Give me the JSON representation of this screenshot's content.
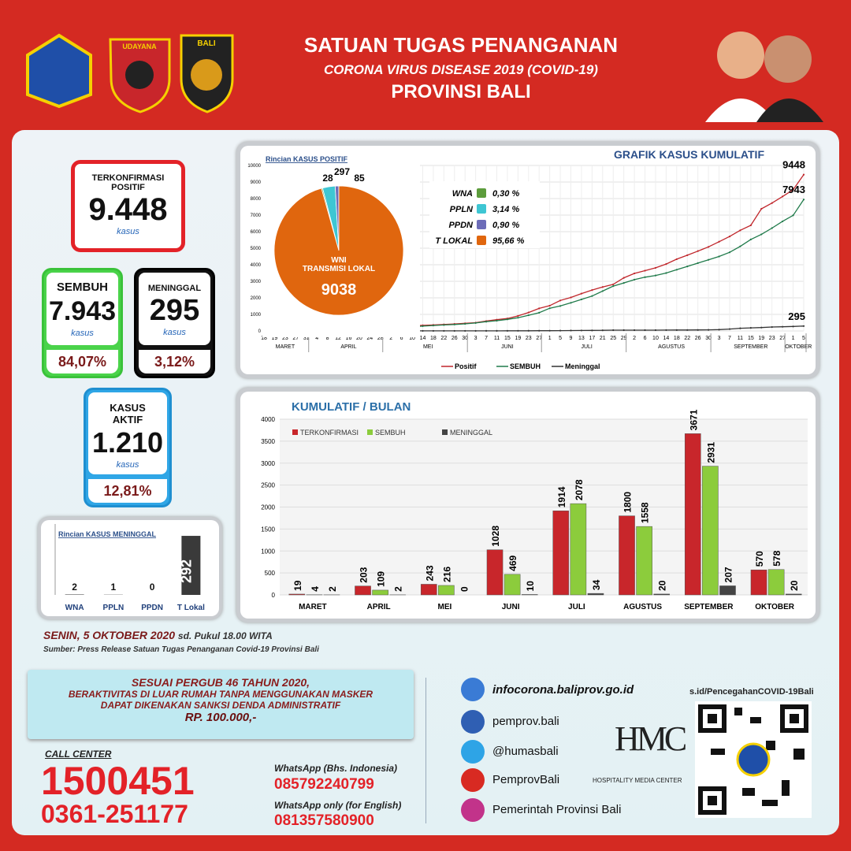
{
  "header": {
    "title": "SATUAN TUGAS PENANGANAN",
    "subtitle": "CORONA VIRUS DISEASE 2019 (COVID-19)",
    "province": "PROVINSI BALI",
    "logo_labels": [
      "UDAYANA",
      "BALI"
    ]
  },
  "stats": {
    "confirmed": {
      "label": "TERKONFIRMASI POSITIF",
      "value": "9.448",
      "unit": "kasus"
    },
    "recovered": {
      "label": "SEMBUH",
      "value": "7.943",
      "unit": "kasus",
      "percent": "84,07%"
    },
    "deaths": {
      "label": "MENINGGAL",
      "value": "295",
      "unit": "kasus",
      "percent": "3,12%"
    },
    "active": {
      "label": "KASUS AKTIF",
      "value": "1.210",
      "unit": "kasus",
      "percent": "12,81%"
    }
  },
  "chart_data": [
    {
      "type": "line",
      "title": "GRAFIK KASUS KUMULATIF",
      "categories": [
        "18",
        "19",
        "23",
        "27",
        "31",
        "4",
        "8",
        "12",
        "16",
        "20",
        "24",
        "28",
        "2",
        "6",
        "10",
        "14",
        "18",
        "22",
        "26",
        "30",
        "3",
        "7",
        "11",
        "15",
        "19",
        "23",
        "27",
        "1",
        "5",
        "9",
        "13",
        "17",
        "21",
        "25",
        "29",
        "2",
        "6",
        "10",
        "14",
        "18",
        "22",
        "26",
        "30",
        "3",
        "7",
        "11",
        "15",
        "19",
        "23",
        "27",
        "1",
        "5"
      ],
      "months": [
        "MARET",
        "APRIL",
        "MEI",
        "JUNI",
        "JULI",
        "AGUSTUS",
        "SEPTEMBER",
        "OKTOBER"
      ],
      "ylim": [
        0,
        10000
      ],
      "yticks": [
        0,
        1000,
        2000,
        3000,
        4000,
        5000,
        6000,
        7000,
        8000,
        9000,
        10000
      ],
      "series": [
        {
          "name": "Positif",
          "color": "#c0262b",
          "values": [
            1,
            1,
            9,
            9,
            19,
            35,
            63,
            98,
            133,
            150,
            186,
            218,
            235,
            270,
            312,
            339,
            362,
            392,
            425,
            460,
            501,
            598,
            682,
            751,
            911,
            1116,
            1362,
            1527,
            1842,
            2024,
            2257,
            2470,
            2656,
            2813,
            3209,
            3478,
            3644,
            3812,
            4041,
            4337,
            4576,
            4826,
            5079,
            5392,
            5710,
            6079,
            6383,
            7380,
            7728,
            8126,
            8533,
            9448
          ]
        },
        {
          "name": "SEMBUH",
          "color": "#1f7a4a",
          "values": [
            0,
            0,
            0,
            0,
            4,
            10,
            18,
            32,
            50,
            70,
            100,
            113,
            150,
            200,
            250,
            290,
            330,
            360,
            390,
            430,
            480,
            560,
            620,
            700,
            800,
            950,
            1100,
            1371,
            1508,
            1700,
            1907,
            2110,
            2408,
            2711,
            2900,
            3100,
            3250,
            3350,
            3500,
            3700,
            3900,
            4100,
            4300,
            4500,
            4752,
            5111,
            5529,
            5837,
            6213,
            6623,
            6987,
            7943
          ]
        },
        {
          "name": "Meninggal",
          "color": "#333333",
          "values": [
            0,
            0,
            0,
            1,
            2,
            2,
            2,
            2,
            2,
            3,
            3,
            4,
            4,
            4,
            4,
            4,
            4,
            4,
            4,
            4,
            4,
            5,
            6,
            8,
            9,
            11,
            14,
            15,
            20,
            26,
            27,
            31,
            38,
            46,
            48,
            48,
            48,
            49,
            51,
            55,
            56,
            60,
            65,
            79,
            116,
            161,
            184,
            206,
            236,
            254,
            270,
            295
          ]
        }
      ]
    },
    {
      "type": "pie",
      "title": "Rincian KASUS POSITIF",
      "center_label": [
        "WNI",
        "TRANSMISI LOKAL"
      ],
      "categories": [
        "WNA",
        "PPLN",
        "PPDN",
        "T LOKAL"
      ],
      "values": [
        28,
        297,
        85,
        9038
      ],
      "colors": [
        "#5c9c3c",
        "#3ec6d3",
        "#6c6cb8",
        "#e0660e"
      ],
      "percent_labels": [
        "0,30 %",
        "3,14 %",
        "0,90 %",
        "95,66 %"
      ]
    },
    {
      "type": "bar",
      "title": "KUMULATIF / BULAN",
      "categories": [
        "MARET",
        "APRIL",
        "MEI",
        "JUNI",
        "JULI",
        "AGUSTUS",
        "SEPTEMBER",
        "OKTOBER"
      ],
      "ylim": [
        0,
        4000
      ],
      "yticks": [
        0,
        500,
        1000,
        1500,
        2000,
        2500,
        3000,
        3500,
        4000
      ],
      "series": [
        {
          "name": "TERKONFIRMASI",
          "color": "#c8262b",
          "values": [
            19,
            203,
            243,
            1028,
            1914,
            1800,
            3671,
            570
          ]
        },
        {
          "name": "SEMBUH",
          "color": "#8ccc3c",
          "values": [
            4,
            109,
            216,
            469,
            2078,
            1558,
            2931,
            578
          ]
        },
        {
          "name": "MENINGGAL",
          "color": "#444444",
          "values": [
            2,
            2,
            0,
            10,
            34,
            20,
            207,
            20
          ]
        }
      ]
    },
    {
      "type": "bar",
      "title": "Rincian KASUS MENINGGAL",
      "categories": [
        "WNA",
        "PPLN",
        "PPDN",
        "T Lokal"
      ],
      "values": [
        2,
        1,
        0,
        292
      ],
      "ylim": [
        0,
        300
      ],
      "color": "#3a3a3a"
    }
  ],
  "footer": {
    "date": "SENIN, 5 OKTOBER 2020",
    "time": "sd. Pukul 18.00 WITA",
    "source": "Sumber: Press Release Satuan Tugas Penanganan Covid-19 Provinsi Bali"
  },
  "notice": {
    "lines": [
      "SESUAI PERGUB 46 TAHUN 2020,",
      "BERAKTIVITAS DI LUAR RUMAH TANPA MENGGUNAKAN MASKER",
      "DAPAT DIKENAKAN SANKSI DENDA ADMINISTRATIF"
    ],
    "amount": "RP. 100.000,-"
  },
  "call_center": {
    "label": "CALL CENTER",
    "numbers": [
      "1500451",
      "0361-251177"
    ]
  },
  "whatsapp": [
    {
      "label": "WhatsApp (Bhs. Indonesia)",
      "number": "085792240799"
    },
    {
      "label": "WhatsApp only (for English)",
      "number": "081357580900"
    }
  ],
  "links": [
    "infocorona.baliprov.go.id",
    "pemprov.bali",
    "@humasbali",
    "PemprovBali",
    "Pemerintah Provinsi Bali"
  ],
  "hmc": {
    "logo": "HMC",
    "label": "HOSPITALITY MEDIA CENTER"
  },
  "qr_link": "s.id/PencegahanCOVID-19Bali"
}
